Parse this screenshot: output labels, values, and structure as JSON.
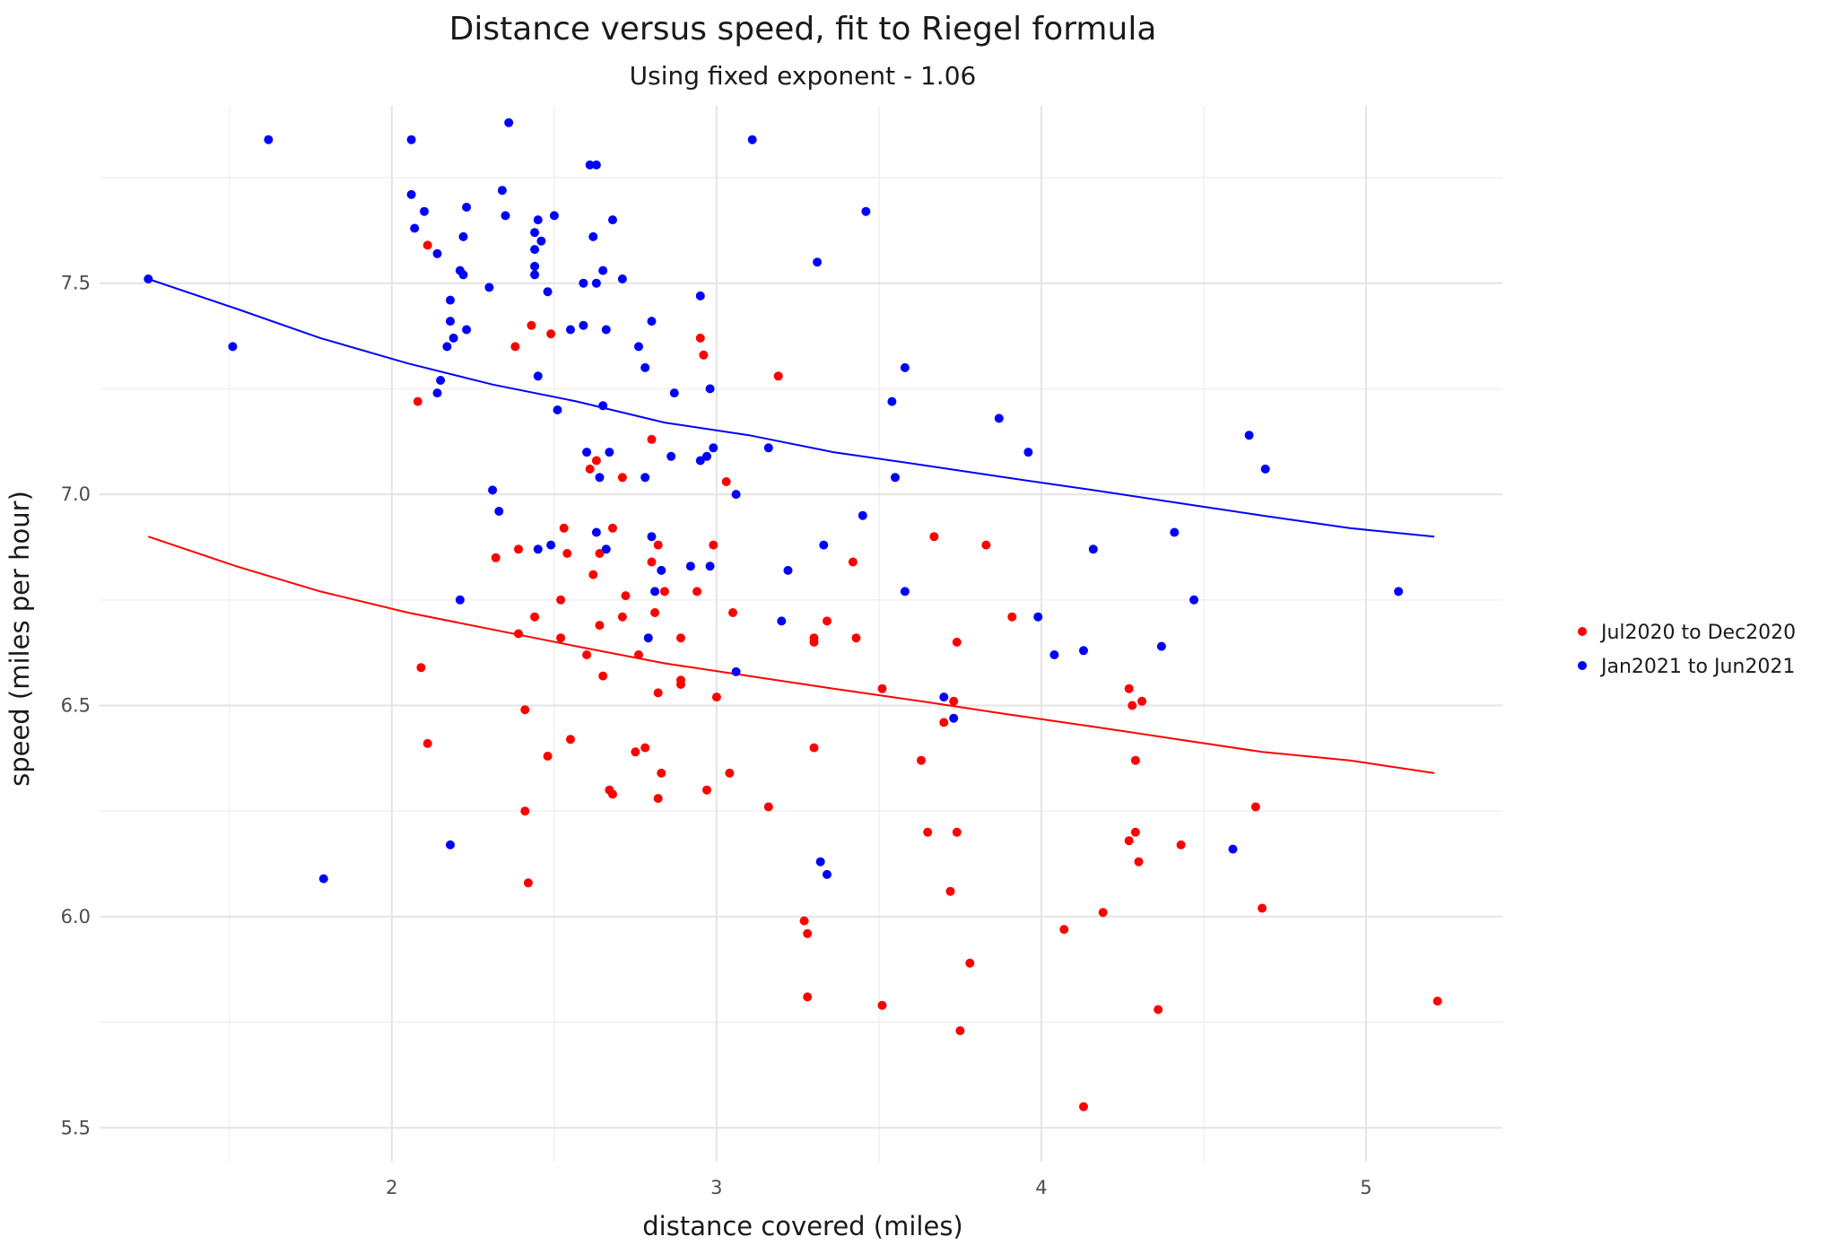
{
  "chart_data": {
    "type": "scatter",
    "title": "Distance versus speed, fit to Riegel formula",
    "subtitle": "Using fixed exponent - 1.06",
    "xlabel": "distance covered (miles)",
    "ylabel": "speed (miles per hour)",
    "xlim": [
      1.1,
      5.42
    ],
    "ylim": [
      5.42,
      7.92
    ],
    "x_ticks": [
      2,
      3,
      4,
      5
    ],
    "y_ticks": [
      5.5,
      6.0,
      6.5,
      7.0,
      7.5
    ],
    "x_tick_labels": [
      "2",
      "3",
      "4",
      "5"
    ],
    "y_tick_labels": [
      "5.5",
      "6.0",
      "6.5",
      "7.0",
      "7.5"
    ],
    "grid": true,
    "legend_position": "right",
    "series": [
      {
        "name": "Jul2020 to Dec2020",
        "color": "#ff0000",
        "points": [
          [
            2.11,
            7.59
          ],
          [
            2.08,
            7.22
          ],
          [
            2.09,
            6.59
          ],
          [
            2.11,
            6.41
          ],
          [
            2.38,
            7.35
          ],
          [
            2.43,
            7.4
          ],
          [
            2.49,
            7.38
          ],
          [
            2.32,
            6.85
          ],
          [
            2.39,
            6.87
          ],
          [
            2.44,
            6.71
          ],
          [
            2.39,
            6.67
          ],
          [
            2.41,
            6.49
          ],
          [
            2.41,
            6.25
          ],
          [
            2.42,
            6.08
          ],
          [
            2.48,
            6.38
          ],
          [
            2.53,
            6.92
          ],
          [
            2.54,
            6.86
          ],
          [
            2.52,
            6.75
          ],
          [
            2.52,
            6.66
          ],
          [
            2.55,
            6.42
          ],
          [
            2.6,
            6.62
          ],
          [
            2.62,
            6.81
          ],
          [
            2.61,
            7.06
          ],
          [
            2.63,
            7.08
          ],
          [
            2.64,
            6.86
          ],
          [
            2.64,
            6.69
          ],
          [
            2.65,
            6.57
          ],
          [
            2.67,
            6.3
          ],
          [
            2.68,
            6.29
          ],
          [
            2.68,
            6.92
          ],
          [
            2.71,
            7.04
          ],
          [
            2.71,
            6.71
          ],
          [
            2.72,
            6.76
          ],
          [
            2.75,
            6.39
          ],
          [
            2.76,
            6.62
          ],
          [
            2.78,
            6.4
          ],
          [
            2.8,
            6.84
          ],
          [
            2.8,
            7.13
          ],
          [
            2.81,
            6.72
          ],
          [
            2.82,
            6.88
          ],
          [
            2.82,
            6.53
          ],
          [
            2.82,
            6.28
          ],
          [
            2.83,
            6.34
          ],
          [
            2.84,
            6.77
          ],
          [
            2.89,
            6.66
          ],
          [
            2.89,
            6.56
          ],
          [
            2.89,
            6.55
          ],
          [
            2.94,
            6.77
          ],
          [
            2.95,
            7.37
          ],
          [
            2.96,
            7.33
          ],
          [
            2.97,
            6.3
          ],
          [
            2.99,
            6.88
          ],
          [
            3.0,
            6.52
          ],
          [
            3.03,
            7.03
          ],
          [
            3.05,
            6.72
          ],
          [
            3.04,
            6.34
          ],
          [
            3.16,
            6.26
          ],
          [
            3.19,
            7.28
          ],
          [
            3.27,
            5.99
          ],
          [
            3.28,
            5.96
          ],
          [
            3.28,
            5.81
          ],
          [
            3.3,
            6.66
          ],
          [
            3.3,
            6.65
          ],
          [
            3.3,
            6.4
          ],
          [
            3.34,
            6.7
          ],
          [
            3.42,
            6.84
          ],
          [
            3.43,
            6.66
          ],
          [
            3.51,
            6.54
          ],
          [
            3.51,
            5.79
          ],
          [
            3.63,
            6.37
          ],
          [
            3.65,
            6.2
          ],
          [
            3.67,
            6.9
          ],
          [
            3.7,
            6.46
          ],
          [
            3.72,
            6.06
          ],
          [
            3.73,
            6.51
          ],
          [
            3.74,
            6.2
          ],
          [
            3.74,
            6.65
          ],
          [
            3.75,
            5.73
          ],
          [
            3.78,
            5.89
          ],
          [
            3.83,
            6.88
          ],
          [
            3.91,
            6.71
          ],
          [
            4.07,
            5.97
          ],
          [
            4.13,
            5.55
          ],
          [
            4.19,
            6.01
          ],
          [
            4.27,
            6.54
          ],
          [
            4.27,
            6.18
          ],
          [
            4.28,
            6.5
          ],
          [
            4.29,
            6.37
          ],
          [
            4.29,
            6.2
          ],
          [
            4.3,
            6.13
          ],
          [
            4.31,
            6.51
          ],
          [
            4.36,
            5.78
          ],
          [
            4.43,
            6.17
          ],
          [
            4.66,
            6.26
          ],
          [
            4.68,
            6.02
          ],
          [
            5.22,
            5.8
          ]
        ],
        "fit_curve": [
          [
            1.25,
            6.9
          ],
          [
            1.52,
            6.83
          ],
          [
            1.78,
            6.77
          ],
          [
            2.05,
            6.72
          ],
          [
            2.31,
            6.68
          ],
          [
            2.57,
            6.64
          ],
          [
            2.84,
            6.6
          ],
          [
            3.1,
            6.57
          ],
          [
            3.36,
            6.54
          ],
          [
            3.63,
            6.51
          ],
          [
            3.89,
            6.48
          ],
          [
            4.16,
            6.45
          ],
          [
            4.42,
            6.42
          ],
          [
            4.68,
            6.39
          ],
          [
            4.95,
            6.37
          ],
          [
            5.21,
            6.34
          ]
        ]
      },
      {
        "name": "Jan2021 to Jun2021",
        "color": "#0000ff",
        "points": [
          [
            1.62,
            7.84
          ],
          [
            1.51,
            7.35
          ],
          [
            1.79,
            6.09
          ],
          [
            2.06,
            7.84
          ],
          [
            2.06,
            7.71
          ],
          [
            2.07,
            7.63
          ],
          [
            2.1,
            7.67
          ],
          [
            2.14,
            7.24
          ],
          [
            2.15,
            7.27
          ],
          [
            2.14,
            7.57
          ],
          [
            2.18,
            7.46
          ],
          [
            2.18,
            7.41
          ],
          [
            2.18,
            6.17
          ],
          [
            2.17,
            7.35
          ],
          [
            2.19,
            7.37
          ],
          [
            2.21,
            7.53
          ],
          [
            2.22,
            7.52
          ],
          [
            2.22,
            7.61
          ],
          [
            2.23,
            7.68
          ],
          [
            2.23,
            7.39
          ],
          [
            2.21,
            6.75
          ],
          [
            2.3,
            7.49
          ],
          [
            2.31,
            7.01
          ],
          [
            2.33,
            6.96
          ],
          [
            2.34,
            7.72
          ],
          [
            2.35,
            7.66
          ],
          [
            2.36,
            7.88
          ],
          [
            2.44,
            7.62
          ],
          [
            2.44,
            7.58
          ],
          [
            2.44,
            7.54
          ],
          [
            2.44,
            7.52
          ],
          [
            2.45,
            7.65
          ],
          [
            2.46,
            7.6
          ],
          [
            2.45,
            7.28
          ],
          [
            2.45,
            6.87
          ],
          [
            2.48,
            7.48
          ],
          [
            2.5,
            7.66
          ],
          [
            2.51,
            7.2
          ],
          [
            2.49,
            6.88
          ],
          [
            2.55,
            7.39
          ],
          [
            2.59,
            7.5
          ],
          [
            2.59,
            7.4
          ],
          [
            2.6,
            7.1
          ],
          [
            2.61,
            7.78
          ],
          [
            2.62,
            7.61
          ],
          [
            2.63,
            7.78
          ],
          [
            2.63,
            7.5
          ],
          [
            2.64,
            7.04
          ],
          [
            2.63,
            6.91
          ],
          [
            2.65,
            7.21
          ],
          [
            2.65,
            7.53
          ],
          [
            2.66,
            7.39
          ],
          [
            2.66,
            6.87
          ],
          [
            2.67,
            7.1
          ],
          [
            2.68,
            7.65
          ],
          [
            2.71,
            7.51
          ],
          [
            2.76,
            7.35
          ],
          [
            2.78,
            7.3
          ],
          [
            2.78,
            7.04
          ],
          [
            2.79,
            6.66
          ],
          [
            2.8,
            6.9
          ],
          [
            2.8,
            7.41
          ],
          [
            2.81,
            6.77
          ],
          [
            2.83,
            6.82
          ],
          [
            2.86,
            7.09
          ],
          [
            2.87,
            7.24
          ],
          [
            2.92,
            6.83
          ],
          [
            2.95,
            7.47
          ],
          [
            2.95,
            7.08
          ],
          [
            2.97,
            7.09
          ],
          [
            2.98,
            6.83
          ],
          [
            2.98,
            7.25
          ],
          [
            2.99,
            7.11
          ],
          [
            3.06,
            7.0
          ],
          [
            3.06,
            6.58
          ],
          [
            3.11,
            7.84
          ],
          [
            3.16,
            7.11
          ],
          [
            3.2,
            6.7
          ],
          [
            3.22,
            6.82
          ],
          [
            3.31,
            7.55
          ],
          [
            3.32,
            6.13
          ],
          [
            3.33,
            6.88
          ],
          [
            3.34,
            6.1
          ],
          [
            3.45,
            6.95
          ],
          [
            3.46,
            7.67
          ],
          [
            3.54,
            7.22
          ],
          [
            3.55,
            7.04
          ],
          [
            3.58,
            7.3
          ],
          [
            3.58,
            6.77
          ],
          [
            3.7,
            6.52
          ],
          [
            3.73,
            6.47
          ],
          [
            3.87,
            7.18
          ],
          [
            3.96,
            7.1
          ],
          [
            3.99,
            6.71
          ],
          [
            4.04,
            6.62
          ],
          [
            4.13,
            6.63
          ],
          [
            4.16,
            6.87
          ],
          [
            4.37,
            6.64
          ],
          [
            4.41,
            6.91
          ],
          [
            4.47,
            6.75
          ],
          [
            4.59,
            6.16
          ],
          [
            4.64,
            7.14
          ],
          [
            4.69,
            7.06
          ],
          [
            5.1,
            6.77
          ],
          [
            1.25,
            7.51
          ]
        ],
        "fit_curve": [
          [
            1.25,
            7.51
          ],
          [
            1.52,
            7.44
          ],
          [
            1.78,
            7.37
          ],
          [
            2.05,
            7.31
          ],
          [
            2.31,
            7.26
          ],
          [
            2.57,
            7.22
          ],
          [
            2.84,
            7.17
          ],
          [
            3.1,
            7.14
          ],
          [
            3.36,
            7.1
          ],
          [
            3.63,
            7.07
          ],
          [
            3.89,
            7.04
          ],
          [
            4.16,
            7.01
          ],
          [
            4.42,
            6.98
          ],
          [
            4.68,
            6.95
          ],
          [
            4.95,
            6.92
          ],
          [
            5.21,
            6.9
          ]
        ]
      }
    ]
  }
}
